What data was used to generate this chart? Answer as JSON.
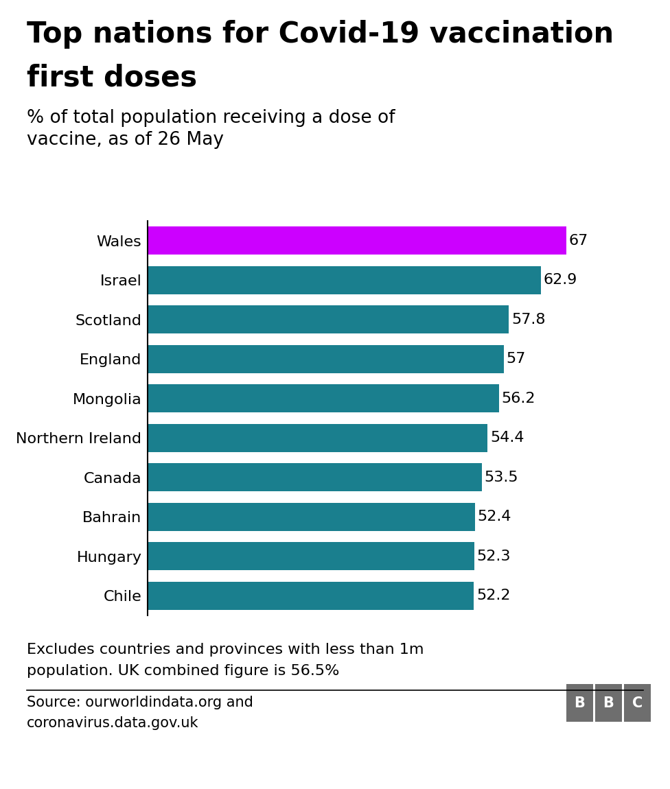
{
  "title_line1": "Top nations for Covid-19 vaccination",
  "title_line2": "first doses",
  "subtitle_line1": "% of total population receiving a dose of",
  "subtitle_line2": "vaccine, as of 26 May",
  "categories": [
    "Wales",
    "Israel",
    "Scotland",
    "England",
    "Mongolia",
    "Northern Ireland",
    "Canada",
    "Bahrain",
    "Hungary",
    "Chile"
  ],
  "values": [
    67,
    62.9,
    57.8,
    57,
    56.2,
    54.4,
    53.5,
    52.4,
    52.3,
    52.2
  ],
  "bar_colors": [
    "#cc00ff",
    "#1a7f8e",
    "#1a7f8e",
    "#1a7f8e",
    "#1a7f8e",
    "#1a7f8e",
    "#1a7f8e",
    "#1a7f8e",
    "#1a7f8e",
    "#1a7f8e"
  ],
  "value_labels": [
    "67",
    "62.9",
    "57.8",
    "57",
    "56.2",
    "54.4",
    "53.5",
    "52.4",
    "52.3",
    "52.2"
  ],
  "xlim": [
    0,
    75
  ],
  "footnote_line1": "Excludes countries and provinces with less than 1m",
  "footnote_line2": "population. UK combined figure is 56.5%",
  "source_line1": "Source: ourworldindata.org and",
  "source_line2": "coronavirus.data.gov.uk",
  "bbc_label": "BBC",
  "background_color": "#ffffff",
  "title_fontsize": 30,
  "subtitle_fontsize": 19,
  "label_fontsize": 16,
  "value_fontsize": 16,
  "footnote_fontsize": 16,
  "source_fontsize": 15,
  "bar_height": 0.72
}
